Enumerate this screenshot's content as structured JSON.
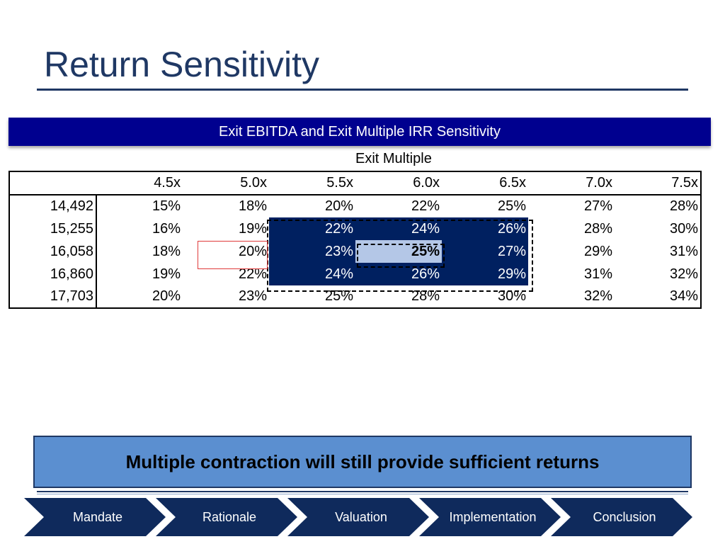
{
  "slide": {
    "title": "Return Sensitivity",
    "banner": "Exit EBITDA and Exit Multiple IRR Sensitivity",
    "column_header": "Exit Multiple"
  },
  "table": {
    "columns": [
      "4.5x",
      "5.0x",
      "5.5x",
      "6.0x",
      "6.5x",
      "7.0x",
      "7.5x"
    ],
    "rows": [
      {
        "label": "14,492",
        "values": [
          "15%",
          "18%",
          "20%",
          "22%",
          "25%",
          "27%",
          "28%"
        ]
      },
      {
        "label": "15,255",
        "values": [
          "16%",
          "19%",
          "22%",
          "24%",
          "26%",
          "28%",
          "30%"
        ]
      },
      {
        "label": "16,058",
        "values": [
          "18%",
          "20%",
          "23%",
          "25%",
          "27%",
          "29%",
          "31%"
        ]
      },
      {
        "label": "16,860",
        "values": [
          "19%",
          "22%",
          "24%",
          "26%",
          "29%",
          "31%",
          "32%"
        ]
      },
      {
        "label": "17,703",
        "values": [
          "20%",
          "23%",
          "25%",
          "28%",
          "30%",
          "32%",
          "34%"
        ]
      }
    ]
  },
  "callout": "Multiple contraction will still provide sufficient returns",
  "nav": [
    "Mandate",
    "Rationale",
    "Valuation",
    "Implementation",
    "Conclusion"
  ],
  "colors": {
    "title": "#1f3864",
    "banner": "#00008f",
    "highlight_dark": "#002060",
    "highlight_light": "#b4c7e7",
    "callout": "#5b8fd0",
    "nav": "#0f2a5c"
  }
}
